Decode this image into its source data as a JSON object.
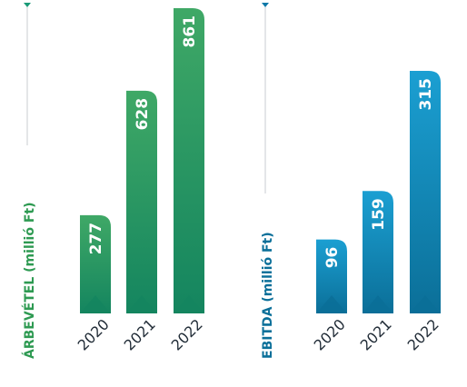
{
  "chart_data": [
    {
      "type": "bar",
      "ylabel": "ÁRBEVÉTEL (millió Ft)",
      "categories": [
        "2020",
        "2021",
        "2022"
      ],
      "values": [
        277,
        628,
        861
      ],
      "colors": {
        "light": "#3fa866",
        "dark": "#14855f",
        "accent": "#1a9a77",
        "title": "#2e9a52"
      }
    },
    {
      "type": "bar",
      "ylabel": "EBITDA (millió Ft)",
      "categories": [
        "2020",
        "2021",
        "2022"
      ],
      "values": [
        96,
        159,
        315
      ],
      "colors": {
        "light": "#1b9fd2",
        "dark": "#0b6f98",
        "accent": "#0b78a8",
        "title": "#0a6f99"
      }
    }
  ]
}
